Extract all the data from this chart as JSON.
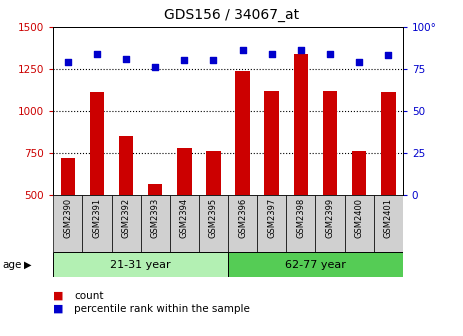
{
  "title": "GDS156 / 34067_at",
  "categories": [
    "GSM2390",
    "GSM2391",
    "GSM2392",
    "GSM2393",
    "GSM2394",
    "GSM2395",
    "GSM2396",
    "GSM2397",
    "GSM2398",
    "GSM2399",
    "GSM2400",
    "GSM2401"
  ],
  "bar_values": [
    720,
    1110,
    850,
    565,
    780,
    760,
    1240,
    1120,
    1340,
    1120,
    760,
    1110
  ],
  "dot_values": [
    79,
    84,
    81,
    76,
    80,
    80,
    86,
    84,
    86,
    84,
    79,
    83
  ],
  "groups": [
    {
      "label": "21-31 year",
      "start": 0,
      "end": 6,
      "color": "#b3f0b3"
    },
    {
      "label": "62-77 year",
      "start": 6,
      "end": 12,
      "color": "#55cc55"
    }
  ],
  "ylim_left": [
    500,
    1500
  ],
  "ylim_right": [
    0,
    100
  ],
  "yticks_left": [
    500,
    750,
    1000,
    1250,
    1500
  ],
  "yticks_right": [
    0,
    25,
    50,
    75,
    100
  ],
  "bar_color": "#cc0000",
  "dot_color": "#0000cc",
  "age_label": "age",
  "legend_count": "count",
  "legend_percentile": "percentile rank within the sample",
  "right_axis_label_color": "#0000cc",
  "left_axis_label_color": "#cc0000",
  "grid_yticks": [
    750,
    1000,
    1250
  ],
  "bar_width": 0.5
}
